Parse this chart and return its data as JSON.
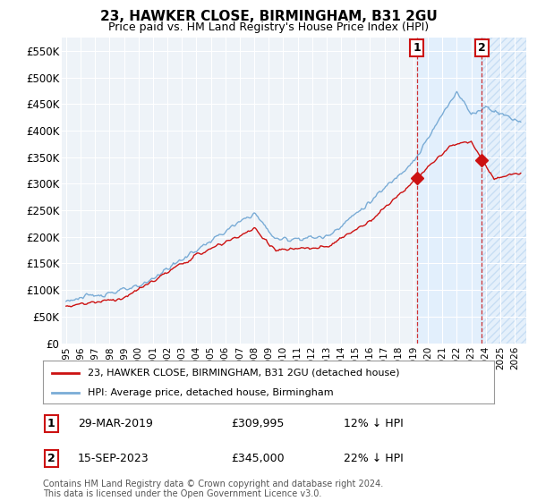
{
  "title": "23, HAWKER CLOSE, BIRMINGHAM, B31 2GU",
  "subtitle": "Price paid vs. HM Land Registry's House Price Index (HPI)",
  "ytick_values": [
    0,
    50000,
    100000,
    150000,
    200000,
    250000,
    300000,
    350000,
    400000,
    450000,
    500000,
    550000
  ],
  "ylim": [
    0,
    575000
  ],
  "xlim_start": 1994.7,
  "xlim_end": 2026.8,
  "hpi_color": "#7aacd6",
  "price_color": "#cc1111",
  "marker1_x": 2019.24,
  "marker1_y": 309995,
  "marker2_x": 2023.71,
  "marker2_y": 345000,
  "legend_label1": "23, HAWKER CLOSE, BIRMINGHAM, B31 2GU (detached house)",
  "legend_label2": "HPI: Average price, detached house, Birmingham",
  "footer": "Contains HM Land Registry data © Crown copyright and database right 2024.\nThis data is licensed under the Open Government Licence v3.0.",
  "vline1_x": 2019.24,
  "vline2_x": 2023.71,
  "shade_color": "#ddeeff",
  "hatch_color": "#ccddee",
  "row1_label": "1",
  "row1_date": "29-MAR-2019",
  "row1_price": "£309,995",
  "row1_hpi": "12% ↓ HPI",
  "row2_label": "2",
  "row2_date": "15-SEP-2023",
  "row2_price": "£345,000",
  "row2_hpi": "22% ↓ HPI"
}
